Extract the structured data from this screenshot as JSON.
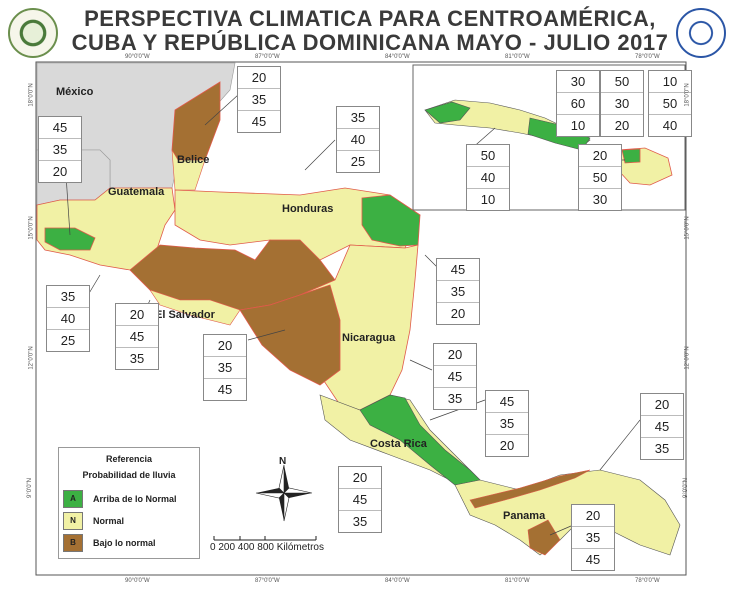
{
  "title": {
    "line1": "PERSPECTIVA CLIMATICA PARA CENTROAMÉRICA,",
    "line2": "CUBA Y REPÚBLICA DOMINICANA MAYO - JULIO 2017"
  },
  "colors": {
    "above": "#3cb043",
    "normal": "#f1f1a5",
    "below": "#a47033",
    "outline": "#e05a4a",
    "nodata": "#d9d9d9",
    "sea": "#ffffff"
  },
  "labels": {
    "mexico": "México",
    "belice": "Belice",
    "guatemala": "Guatemala",
    "honduras": "Honduras",
    "el_salvador": "El Salvador",
    "nicaragua": "Nicaragua",
    "costa_rica": "Costa Rica",
    "panama": "Panama"
  },
  "prob_boxes": [
    {
      "values": [
        "20",
        "35",
        "45"
      ]
    },
    {
      "values": [
        "45",
        "35",
        "20"
      ]
    },
    {
      "values": [
        "35",
        "40",
        "25"
      ]
    },
    {
      "values": [
        "35",
        "40",
        "25"
      ]
    },
    {
      "values": [
        "20",
        "45",
        "35"
      ]
    },
    {
      "values": [
        "20",
        "35",
        "45"
      ]
    },
    {
      "values": [
        "45",
        "35",
        "20"
      ]
    },
    {
      "values": [
        "20",
        "45",
        "35"
      ]
    },
    {
      "values": [
        "45",
        "35",
        "20"
      ]
    },
    {
      "values": [
        "20",
        "45",
        "35"
      ]
    },
    {
      "values": [
        "20",
        "45",
        "35"
      ]
    },
    {
      "values": [
        "20",
        "35",
        "45"
      ]
    },
    {
      "values": [
        "30",
        "60",
        "10"
      ]
    },
    {
      "values": [
        "50",
        "30",
        "20"
      ]
    },
    {
      "values": [
        "10",
        "50",
        "40"
      ]
    },
    {
      "values": [
        "50",
        "40",
        "10"
      ]
    },
    {
      "values": [
        "20",
        "50",
        "30"
      ]
    }
  ],
  "legend": {
    "title": "Referencia",
    "subtitle": "Probabilidad de lluvia",
    "items": [
      {
        "code": "A",
        "label": "Arriba de lo Normal"
      },
      {
        "code": "N",
        "label": "Normal"
      },
      {
        "code": "B",
        "label": "Bajo lo normal"
      }
    ]
  },
  "compass": {
    "north": "N"
  },
  "scale": {
    "label": "0   200  400         800 Kilómetros"
  },
  "coords": {
    "top_main": [
      "90°0'0\"W",
      "87°0'0\"W",
      "84°0'0\"W"
    ],
    "top_inset": [
      "81°0'0\"W",
      "78°0'0\"W"
    ],
    "left": [
      "18°0'0\"N",
      "15°0'0\"N",
      "12°0'0\"N",
      "9°0'0\"N"
    ],
    "right": [
      "18°0'0\"N",
      "15°0'0\"N",
      "12°0'0\"N",
      "9°0'0\"N"
    ],
    "bottom": [
      "90°0'0\"W",
      "87°0'0\"W",
      "84°0'0\"W",
      "81°0'0\"W",
      "78°0'0\"W"
    ]
  }
}
